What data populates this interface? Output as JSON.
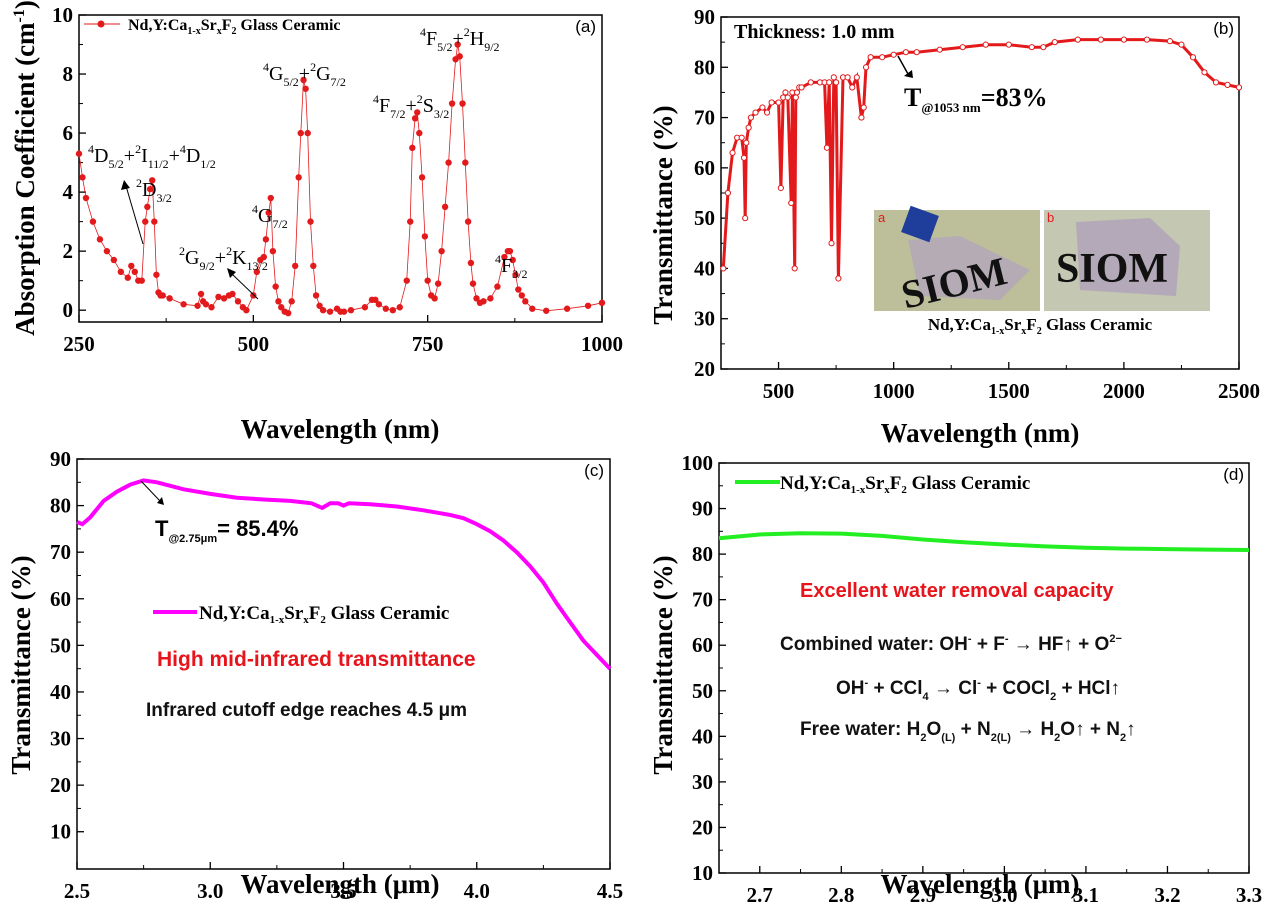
{
  "chart_data": [
    {
      "panel_label": "(a)",
      "type": "line",
      "xlabel": "Wavelength (nm)",
      "ylabel": "Absorption Coefficient (cm⁻¹)",
      "xlim": [
        250,
        1000
      ],
      "ylim": [
        -0.4,
        10
      ],
      "xticks": [
        250,
        500,
        750,
        1000
      ],
      "yticks": [
        0,
        2,
        4,
        6,
        8,
        10
      ],
      "grid": false,
      "legend": {
        "label": "Nd,Y:Ca1-xSrxF2 Glass Ceramic",
        "placement": "top-left"
      },
      "series": [
        {
          "name": "Nd,Y:Ca1-xSrxF2 Glass Ceramic",
          "color": "#e31a1c",
          "marker": "circle",
          "x": [
            250,
            255,
            260,
            270,
            280,
            290,
            300,
            310,
            320,
            325,
            330,
            335,
            340,
            345,
            348,
            352,
            355,
            358,
            361,
            364,
            367,
            370,
            380,
            400,
            420,
            425,
            428,
            432,
            440,
            450,
            458,
            465,
            470,
            478,
            485,
            490,
            500,
            505,
            510,
            515,
            518,
            522,
            525,
            528,
            532,
            536,
            540,
            545,
            550,
            555,
            560,
            565,
            568,
            572,
            575,
            578,
            582,
            586,
            590,
            595,
            600,
            610,
            620,
            625,
            630,
            640,
            660,
            670,
            675,
            680,
            690,
            700,
            710,
            720,
            725,
            728,
            732,
            735,
            738,
            742,
            746,
            750,
            755,
            760,
            765,
            770,
            775,
            780,
            785,
            790,
            793,
            796,
            800,
            804,
            808,
            812,
            815,
            820,
            825,
            830,
            840,
            850,
            860,
            865,
            868,
            872,
            876,
            880,
            885,
            890,
            900,
            920,
            950,
            980,
            1000
          ],
          "y": [
            5.3,
            4.5,
            3.8,
            3.0,
            2.4,
            2.0,
            1.7,
            1.3,
            1.1,
            1.5,
            1.3,
            1.0,
            1.0,
            3.0,
            3.5,
            4.1,
            4.4,
            3.0,
            1.2,
            0.6,
            0.5,
            0.5,
            0.4,
            0.2,
            0.15,
            0.55,
            0.3,
            0.2,
            0.1,
            0.45,
            0.4,
            0.5,
            0.55,
            0.3,
            0.1,
            0.0,
            0.5,
            1.3,
            1.7,
            1.8,
            2.4,
            3.3,
            3.8,
            2.0,
            0.8,
            0.3,
            0.1,
            -0.05,
            -0.1,
            0.3,
            1.5,
            4.5,
            6.0,
            7.8,
            7.5,
            6.0,
            3.0,
            1.5,
            0.5,
            0.15,
            0.0,
            -0.05,
            0.05,
            -0.05,
            -0.05,
            0.0,
            0.1,
            0.35,
            0.35,
            0.2,
            0.05,
            0.0,
            0.1,
            1.0,
            3.0,
            5.5,
            6.5,
            6.7,
            6.0,
            4.5,
            2.5,
            1.0,
            0.5,
            0.4,
            0.9,
            2.0,
            3.5,
            5.0,
            7.0,
            8.5,
            9.0,
            8.6,
            7.0,
            5.0,
            3.0,
            1.6,
            0.9,
            0.4,
            0.25,
            0.3,
            0.4,
            0.8,
            1.8,
            2.0,
            2.0,
            1.7,
            1.2,
            0.7,
            0.5,
            0.3,
            0.05,
            -0.02,
            0.05,
            0.15,
            0.25
          ]
        }
      ],
      "annotations": [
        {
          "text": "⁴D5/2+²I11/2+⁴D1/2",
          "x": 360,
          "y": 6.0
        },
        {
          "text": "²D3/2",
          "x": 350,
          "y": 4.7
        },
        {
          "text": "²G9/2+²K13/2",
          "x": 450,
          "y": 3.1
        },
        {
          "text": "⁴G7/2",
          "x": 530,
          "y": 4.1
        },
        {
          "text": "⁴G5/2+²G7/2",
          "x": 580,
          "y": 8.1
        },
        {
          "text": "⁴F7/2+²S3/2",
          "x": 730,
          "y": 7.1
        },
        {
          "text": "⁴F5/2+²H9/2",
          "x": 800,
          "y": 9.3
        },
        {
          "text": "⁴F3/2",
          "x": 875,
          "y": 2.4
        }
      ]
    },
    {
      "panel_label": "(b)",
      "type": "line",
      "xlabel": "Wavelength (nm)",
      "ylabel": "Transmittance (%)",
      "xlim": [
        250,
        2500
      ],
      "ylim": [
        20,
        90
      ],
      "xticks": [
        500,
        1000,
        1500,
        2000,
        2500
      ],
      "yticks": [
        20,
        30,
        40,
        50,
        60,
        70,
        80,
        90
      ],
      "grid": false,
      "series": [
        {
          "name": "Transmittance",
          "color": "#e31a1c",
          "marker": "open-circle",
          "x": [
            260,
            280,
            300,
            320,
            340,
            350,
            355,
            360,
            370,
            380,
            400,
            430,
            450,
            470,
            500,
            510,
            520,
            530,
            540,
            555,
            560,
            570,
            575,
            580,
            590,
            600,
            640,
            680,
            700,
            710,
            720,
            730,
            740,
            750,
            760,
            780,
            800,
            820,
            840,
            860,
            870,
            880,
            900,
            950,
            1000,
            1053,
            1100,
            1200,
            1300,
            1400,
            1500,
            1600,
            1650,
            1700,
            1800,
            1900,
            2000,
            2100,
            2200,
            2250,
            2300,
            2350,
            2400,
            2450,
            2500
          ],
          "y": [
            40,
            55,
            63,
            66,
            66,
            62,
            50,
            65,
            68,
            70,
            71,
            72,
            71,
            73,
            73,
            56,
            74,
            75,
            74,
            53,
            75,
            40,
            74,
            75,
            76,
            76,
            77,
            77,
            77,
            64,
            77,
            45,
            78,
            77,
            38,
            78,
            78,
            76,
            78,
            70,
            72,
            80,
            82,
            82,
            82.5,
            83,
            83,
            83.5,
            84,
            84.5,
            84.5,
            84,
            84,
            85,
            85.5,
            85.5,
            85.5,
            85.5,
            85.2,
            84.5,
            82,
            79,
            77,
            76.5,
            76
          ]
        }
      ],
      "annotations": [
        {
          "text": "Thickness: 1.0 mm"
        },
        {
          "text": "T@1053 nm=83%",
          "x": 1053,
          "y": 83
        },
        {
          "text": "Nd,Y:Ca1-xSrxF2 Glass Ceramic",
          "role": "inset-caption"
        }
      ],
      "inset": {
        "photos": [
          {
            "label": "a",
            "caption_text": "SIOM"
          },
          {
            "label": "b",
            "caption_text": "SIOM"
          }
        ]
      }
    },
    {
      "panel_label": "(c)",
      "type": "line",
      "xlabel": "Wavelength (μm)",
      "ylabel": "Transmittance (%)",
      "xlim": [
        2.5,
        4.5
      ],
      "ylim": [
        2,
        90
      ],
      "xticks": [
        2.5,
        3.0,
        3.5,
        4.0,
        4.5
      ],
      "yticks": [
        10,
        20,
        30,
        40,
        50,
        60,
        70,
        80,
        90
      ],
      "grid": false,
      "legend": {
        "label": "Nd,Y:Ca1-xSrxF2 Glass Ceramic",
        "placement": "center"
      },
      "series": [
        {
          "name": "Nd,Y:Ca1-xSrxF2 Glass Ceramic",
          "color": "#ff00ff",
          "x": [
            2.5,
            2.52,
            2.55,
            2.6,
            2.65,
            2.7,
            2.75,
            2.8,
            2.9,
            3.0,
            3.1,
            3.2,
            3.3,
            3.38,
            3.42,
            3.45,
            3.48,
            3.5,
            3.52,
            3.6,
            3.7,
            3.8,
            3.9,
            3.95,
            4.0,
            4.05,
            4.1,
            4.15,
            4.2,
            4.25,
            4.3,
            4.35,
            4.4,
            4.45,
            4.5
          ],
          "y": [
            76.5,
            76,
            77.5,
            81,
            83,
            84.5,
            85.4,
            85,
            83.5,
            82.5,
            81.7,
            81.3,
            81,
            80.5,
            79.5,
            80.5,
            80.5,
            80,
            80.5,
            80.3,
            79.8,
            79,
            78,
            77.3,
            76,
            74.5,
            72.5,
            70,
            67,
            63.5,
            59,
            55,
            51,
            48,
            45
          ]
        }
      ],
      "annotations": [
        {
          "text": "T@2.75μm= 85.4%",
          "x": 2.75,
          "y": 85.4
        },
        {
          "text": "High mid-infrared transmittance",
          "color": "#e8141c"
        },
        {
          "text": "Infrared cutoff edge reaches 4.5 μm"
        }
      ]
    },
    {
      "panel_label": "(d)",
      "type": "line",
      "xlabel": "Wavelength (μm)",
      "ylabel": "Transmittance (%)",
      "xlim": [
        2.65,
        3.3
      ],
      "ylim": [
        10,
        100
      ],
      "xticks": [
        2.7,
        2.8,
        2.9,
        3.0,
        3.1,
        3.2,
        3.3
      ],
      "yticks": [
        10,
        20,
        30,
        40,
        50,
        60,
        70,
        80,
        90,
        100
      ],
      "grid": false,
      "legend": {
        "label": "Nd,Y:Ca1-xSrxF2 Glass Ceramic",
        "placement": "top-left"
      },
      "series": [
        {
          "name": "Nd,Y:Ca1-xSrxF2 Glass Ceramic",
          "color": "#22ee22",
          "x": [
            2.65,
            2.7,
            2.75,
            2.8,
            2.85,
            2.9,
            2.95,
            3.0,
            3.05,
            3.1,
            3.15,
            3.2,
            3.25,
            3.3
          ],
          "y": [
            83.5,
            84.3,
            84.6,
            84.5,
            84.0,
            83.2,
            82.6,
            82.1,
            81.7,
            81.4,
            81.2,
            81.1,
            81.0,
            80.9
          ]
        }
      ],
      "annotations": [
        {
          "text": "Excellent water removal capacity",
          "color": "#e8141c"
        },
        {
          "text": "Combined water: OH⁻ + F⁻ → HF↑ + O²⁻"
        },
        {
          "text": "OH⁻ + CCl4 → Cl⁻ + COCl2 + HCl↑"
        },
        {
          "text": "Free water: H2O(L) + N2(L) → H2O↑ + N2↑"
        }
      ]
    }
  ],
  "labels": {
    "a": {
      "legend_main": "Nd,Y:Ca",
      "legend_sub1": "1-x",
      "legend_sr": "Sr",
      "legend_sub2": "x",
      "legend_f": "F",
      "legend_sub3": "2",
      "legend_tail": " Glass Ceramic",
      "ylabel_main": "Absorption Coefficient (cm",
      "ylabel_sup": "-1",
      "ylabel_end": ")",
      "panel": "(a)"
    },
    "b": {
      "thickness": "Thickness: 1.0 mm",
      "t_main": "T",
      "t_sub": "@1053 nm",
      "t_val": "=83%",
      "photo_a": "a",
      "photo_b": "b",
      "siom": "SIOM",
      "panel": "(b)"
    },
    "c": {
      "t_main": "T",
      "t_sub": "@2.75μm",
      "t_val": "= 85.4%",
      "red_note": "High mid-infrared transmittance",
      "black_note": "Infrared cutoff edge reaches 4.5 μm",
      "panel": "(c)"
    },
    "d": {
      "red_note": "Excellent water removal capacity",
      "panel": "(d)"
    }
  }
}
